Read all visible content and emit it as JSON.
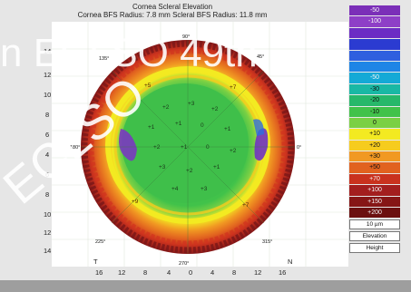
{
  "header": {
    "title": "Cornea Scleral Elevation",
    "subtitle": "Cornea BFS Radius: 7.8 mm    Scleral BFS Radius: 11.8 mm"
  },
  "watermark": {
    "line1": "n ECLSO 49th",
    "line2": "ECLSO"
  },
  "axis": {
    "y_ticks": [
      "14",
      "12",
      "10",
      "8",
      "6",
      "4",
      "6",
      "8",
      "10",
      "12",
      "14"
    ],
    "x_ticks": [
      "16",
      "12",
      "8",
      "4",
      "0",
      "4",
      "8",
      "12",
      "16"
    ],
    "left_letter": "T",
    "right_letter": "N"
  },
  "legend": {
    "values": [
      "-50",
      "-100",
      "",
      "",
      "",
      "",
      "-50",
      "-30",
      "-20",
      "-10",
      "0",
      "+10",
      "+20",
      "+30",
      "+50",
      "+70",
      "+100",
      "+150",
      "+200"
    ],
    "colors": [
      "#7b2fb8",
      "#8e3fc7",
      "#6c2cc4",
      "#2b3bd1",
      "#2f5fdf",
      "#1e85e6",
      "#14a9d6",
      "#19b8a4",
      "#27b86a",
      "#41c24a",
      "#7ad044",
      "#f3ea21",
      "#f6cc1e",
      "#f19922",
      "#e1621f",
      "#c9321e",
      "#a31e1e",
      "#861616",
      "#6b1010"
    ],
    "unit": "10 µm",
    "mode": "Elevation",
    "measure": "Height"
  },
  "map": {
    "ring_values": [
      "+4",
      "+3",
      "+3",
      "+2",
      "+2",
      "+1",
      "0",
      "+1",
      "+2",
      "+3",
      "+4",
      "+5",
      "+7",
      "+9"
    ]
  }
}
